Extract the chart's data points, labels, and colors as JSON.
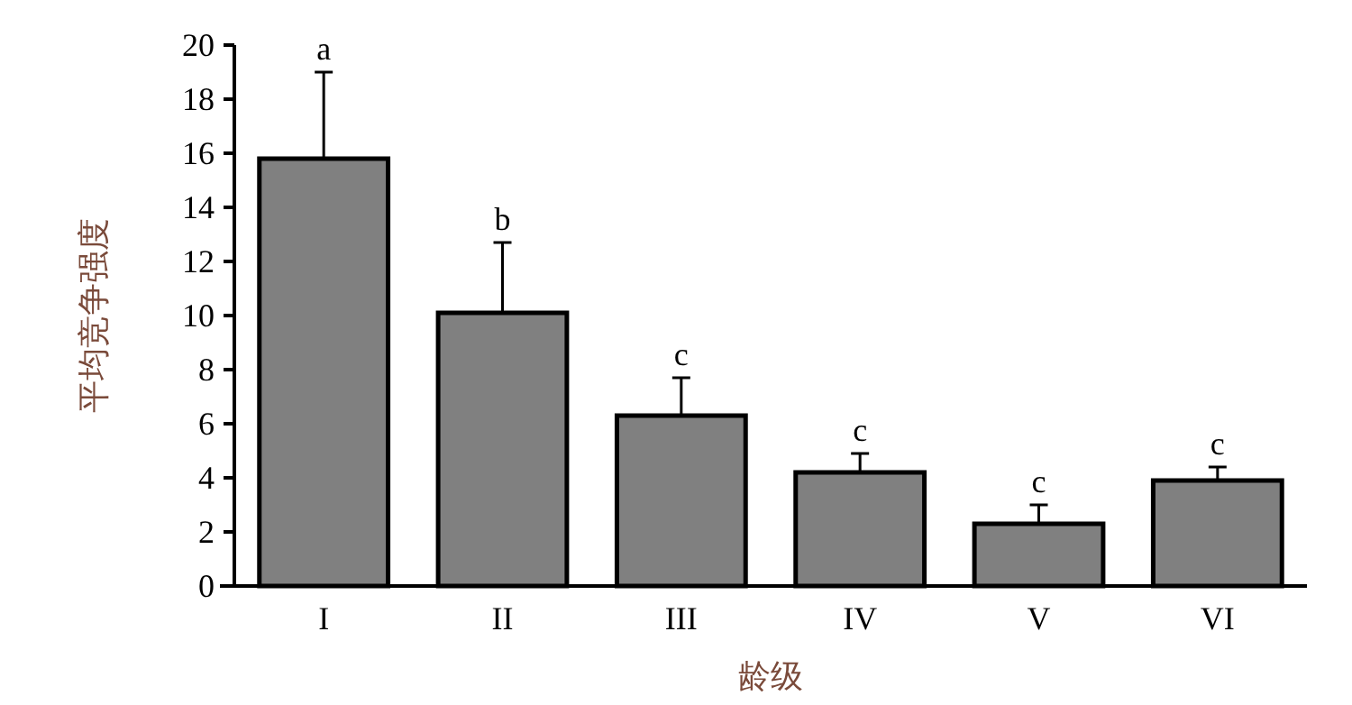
{
  "chart_data": {
    "type": "bar",
    "xlabel": "龄级",
    "ylabel": "平均竞争强度",
    "categories": [
      "I",
      "II",
      "III",
      "IV",
      "V",
      "VI"
    ],
    "values": [
      15.8,
      10.1,
      6.3,
      4.2,
      2.3,
      3.9
    ],
    "errors": [
      [
        15.8,
        19.0
      ],
      [
        10.1,
        12.7
      ],
      [
        6.3,
        7.7
      ],
      [
        4.2,
        4.9
      ],
      [
        2.3,
        3.0
      ],
      [
        3.9,
        4.4
      ]
    ],
    "color": "#808080",
    "ylim": [
      0,
      20
    ],
    "yticks": [
      0,
      2,
      4,
      6,
      8,
      10,
      12,
      14,
      16,
      18,
      20
    ],
    "annotations": [
      {
        "text": "a",
        "x": "I",
        "y": 19.0
      },
      {
        "text": "b",
        "x": "II",
        "y": 12.7
      },
      {
        "text": "c",
        "x": "III",
        "y": 7.7
      },
      {
        "text": "c",
        "x": "IV",
        "y": 4.9
      },
      {
        "text": "c",
        "x": "V",
        "y": 3.0
      },
      {
        "text": "c",
        "x": "VI",
        "y": 4.4
      }
    ],
    "grid": false
  }
}
